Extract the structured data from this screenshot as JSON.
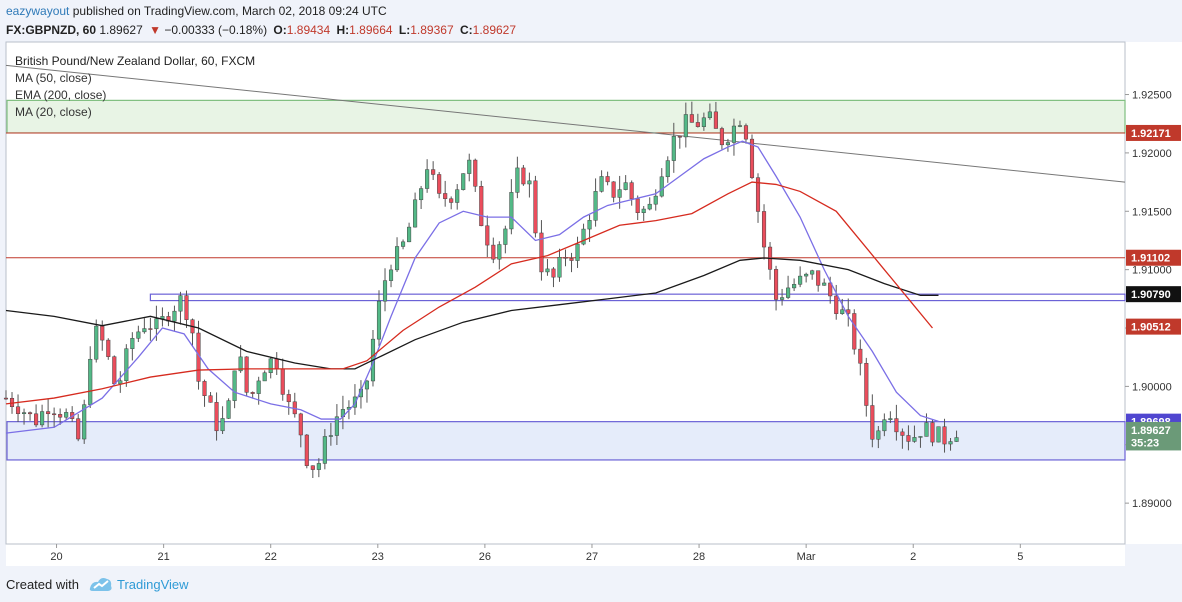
{
  "header": {
    "author": "eazywayout",
    "published_text": "published on TradingView.com, March 02, 2018 09:24 UTC",
    "symbol_tf": "FX:GBPNZD, 60",
    "last": "1.89627",
    "change_arrow": "▼",
    "change": "−0.00333 (−0.18%)",
    "open_label": "O:",
    "open": "1.89434",
    "high_label": "H:",
    "high": "1.89664",
    "low_label": "L:",
    "low": "1.89367",
    "close_label": "C:",
    "close": "1.89627"
  },
  "legend": {
    "title": "British Pound/New Zealand Dollar, 60, FXCM",
    "ma50": "MA (50, close)",
    "ema200": "EMA (200, close)",
    "ma20": "MA (20, close)"
  },
  "footer": {
    "created_with": "Created with",
    "brand": "TradingView"
  },
  "colors": {
    "up": "#53b987",
    "down": "#eb4d5c",
    "ma20": "#7b6fe6",
    "ma50": "#1a1a1a",
    "ema200": "#d62b1f",
    "green_zone": "#e3f3e3",
    "blue_zone": "#e3ebfa",
    "price_label": "#7a9e84",
    "resistance": "#b33"
  },
  "chart_data": {
    "type": "candlestick",
    "y_ticks": [
      "1.92500",
      "1.92000",
      "1.91500",
      "1.91000",
      "1.90500",
      "1.90000",
      "1.89500",
      "1.89000"
    ],
    "y_tick_values": [
      1.925,
      1.92,
      1.915,
      1.91,
      1.905,
      1.9,
      1.895,
      1.89
    ],
    "ylim": [
      1.8865,
      1.9295
    ],
    "x_ticks": [
      {
        "label": "20",
        "t": 42
      },
      {
        "label": "21",
        "t": 131
      },
      {
        "label": "22",
        "t": 220
      },
      {
        "label": "23",
        "t": 309
      },
      {
        "label": "26",
        "t": 398
      },
      {
        "label": "27",
        "t": 487
      },
      {
        "label": "28",
        "t": 576
      },
      {
        "label": "Mar",
        "t": 665
      },
      {
        "label": "2",
        "t": 754
      },
      {
        "label": "5",
        "t": 843
      }
    ],
    "last_bar_t": 790,
    "xlim": [
      0,
      930
    ],
    "ohlc_keypoints": [
      [
        0,
        1.899
      ],
      [
        12,
        1.8982
      ],
      [
        24,
        1.897
      ],
      [
        36,
        1.8985
      ],
      [
        50,
        1.8975
      ],
      [
        62,
        1.895
      ],
      [
        72,
        1.905
      ],
      [
        82,
        1.9035
      ],
      [
        92,
        1.8995
      ],
      [
        104,
        1.904
      ],
      [
        116,
        1.9055
      ],
      [
        126,
        1.905
      ],
      [
        136,
        1.9065
      ],
      [
        146,
        1.9075
      ],
      [
        154,
        1.9055
      ],
      [
        160,
        1.9005
      ],
      [
        168,
        1.8985
      ],
      [
        176,
        1.8965
      ],
      [
        184,
        1.8975
      ],
      [
        192,
        1.9035
      ],
      [
        202,
        1.8985
      ],
      [
        212,
        1.9015
      ],
      [
        224,
        1.9025
      ],
      [
        234,
        1.8985
      ],
      [
        244,
        1.8965
      ],
      [
        252,
        1.893
      ],
      [
        260,
        1.8935
      ],
      [
        268,
        1.896
      ],
      [
        278,
        1.898
      ],
      [
        288,
        1.8985
      ],
      [
        298,
        1.8992
      ],
      [
        308,
        1.906
      ],
      [
        318,
        1.9105
      ],
      [
        328,
        1.9115
      ],
      [
        338,
        1.9145
      ],
      [
        350,
        1.919
      ],
      [
        360,
        1.916
      ],
      [
        372,
        1.9165
      ],
      [
        384,
        1.9195
      ],
      [
        394,
        1.9145
      ],
      [
        404,
        1.9115
      ],
      [
        414,
        1.913
      ],
      [
        424,
        1.918
      ],
      [
        434,
        1.918
      ],
      [
        444,
        1.9105
      ],
      [
        454,
        1.909
      ],
      [
        464,
        1.9112
      ],
      [
        474,
        1.9115
      ],
      [
        484,
        1.9145
      ],
      [
        494,
        1.9175
      ],
      [
        504,
        1.9165
      ],
      [
        514,
        1.9175
      ],
      [
        524,
        1.9152
      ],
      [
        534,
        1.915
      ],
      [
        544,
        1.9185
      ],
      [
        554,
        1.921
      ],
      [
        564,
        1.9225
      ],
      [
        574,
        1.9225
      ],
      [
        584,
        1.923
      ],
      [
        594,
        1.921
      ],
      [
        602,
        1.9218
      ],
      [
        610,
        1.923
      ],
      [
        616,
        1.9215
      ],
      [
        622,
        1.917
      ],
      [
        630,
        1.912
      ],
      [
        640,
        1.9075
      ],
      [
        650,
        1.9085
      ],
      [
        660,
        1.909
      ],
      [
        670,
        1.9095
      ],
      [
        680,
        1.9085
      ],
      [
        690,
        1.907
      ],
      [
        700,
        1.9055
      ],
      [
        708,
        1.9025
      ],
      [
        714,
        1.899
      ],
      [
        722,
        1.895
      ],
      [
        732,
        1.8985
      ],
      [
        742,
        1.8965
      ],
      [
        752,
        1.8955
      ],
      [
        762,
        1.8965
      ],
      [
        770,
        1.896
      ],
      [
        780,
        1.8955
      ],
      [
        790,
        1.89627
      ]
    ],
    "ma20_points": [
      [
        0,
        1.896
      ],
      [
        40,
        1.8965
      ],
      [
        80,
        1.899
      ],
      [
        110,
        1.9025
      ],
      [
        130,
        1.905
      ],
      [
        148,
        1.9045
      ],
      [
        168,
        1.9015
      ],
      [
        190,
        1.8995
      ],
      [
        220,
        1.8985
      ],
      [
        245,
        1.898
      ],
      [
        262,
        1.8972
      ],
      [
        278,
        1.8972
      ],
      [
        290,
        1.8985
      ],
      [
        305,
        1.902
      ],
      [
        320,
        1.906
      ],
      [
        340,
        1.911
      ],
      [
        360,
        1.914
      ],
      [
        380,
        1.915
      ],
      [
        400,
        1.9145
      ],
      [
        420,
        1.9145
      ],
      [
        440,
        1.9125
      ],
      [
        460,
        1.913
      ],
      [
        480,
        1.9145
      ],
      [
        500,
        1.9155
      ],
      [
        520,
        1.916
      ],
      [
        540,
        1.9165
      ],
      [
        560,
        1.918
      ],
      [
        580,
        1.9195
      ],
      [
        600,
        1.9205
      ],
      [
        612,
        1.921
      ],
      [
        625,
        1.9205
      ],
      [
        640,
        1.918
      ],
      [
        660,
        1.9145
      ],
      [
        680,
        1.91
      ],
      [
        700,
        1.906
      ],
      [
        720,
        1.903
      ],
      [
        740,
        1.8995
      ],
      [
        760,
        1.8975
      ],
      [
        775,
        1.897
      ]
    ],
    "ma50_points": [
      [
        0,
        1.9065
      ],
      [
        40,
        1.906
      ],
      [
        80,
        1.9052
      ],
      [
        120,
        1.906
      ],
      [
        160,
        1.905
      ],
      [
        200,
        1.903
      ],
      [
        240,
        1.902
      ],
      [
        270,
        1.9015
      ],
      [
        290,
        1.9015
      ],
      [
        310,
        1.9025
      ],
      [
        340,
        1.904
      ],
      [
        380,
        1.9055
      ],
      [
        420,
        1.9065
      ],
      [
        460,
        1.907
      ],
      [
        500,
        1.9075
      ],
      [
        540,
        1.908
      ],
      [
        580,
        1.9095
      ],
      [
        610,
        1.9108
      ],
      [
        630,
        1.911
      ],
      [
        660,
        1.9108
      ],
      [
        700,
        1.91
      ],
      [
        730,
        1.9088
      ],
      [
        760,
        1.9078
      ],
      [
        775,
        1.9078
      ]
    ],
    "ema200_points": [
      [
        0,
        1.8985
      ],
      [
        40,
        1.899
      ],
      [
        80,
        1.8998
      ],
      [
        120,
        1.9008
      ],
      [
        160,
        1.9014
      ],
      [
        200,
        1.9015
      ],
      [
        240,
        1.9015
      ],
      [
        280,
        1.9015
      ],
      [
        300,
        1.9022
      ],
      [
        330,
        1.9048
      ],
      [
        360,
        1.9068
      ],
      [
        390,
        1.9085
      ],
      [
        420,
        1.9105
      ],
      [
        450,
        1.9112
      ],
      [
        480,
        1.9125
      ],
      [
        510,
        1.9138
      ],
      [
        540,
        1.9142
      ],
      [
        570,
        1.9148
      ],
      [
        600,
        1.9165
      ],
      [
        620,
        1.9175
      ],
      [
        640,
        1.9173
      ],
      [
        660,
        1.9167
      ],
      [
        690,
        1.915
      ],
      [
        710,
        1.9125
      ],
      [
        730,
        1.91
      ],
      [
        750,
        1.9075
      ],
      [
        770,
        1.905
      ]
    ],
    "trendline": {
      "from": [
        0,
        1.9275
      ],
      "to": [
        930,
        1.9175
      ]
    },
    "zones": [
      {
        "name": "upper-zone",
        "y0": 1.92171,
        "y1": 1.9245,
        "fill": "#e5f3e2",
        "stroke": "#7fbf7f"
      },
      {
        "name": "mid-zone",
        "y0": 1.90735,
        "y1": 1.9079,
        "fill": "#ffffff",
        "stroke": "#6b62d6",
        "t0": 120
      },
      {
        "name": "lower-zone",
        "y0": 1.8937,
        "y1": 1.89698,
        "fill": "#e2eafa",
        "stroke": "#6b62d6"
      }
    ],
    "hlines": [
      {
        "value": 1.92171,
        "color": "#c0392b"
      },
      {
        "value": 1.91102,
        "color": "#c0392b"
      }
    ],
    "price_labels": [
      {
        "text": "1.92171",
        "value": 1.92171,
        "bg": "#c0392b",
        "fg": "#ffffff"
      },
      {
        "text": "1.91102",
        "value": 1.91102,
        "bg": "#c0392b",
        "fg": "#ffffff"
      },
      {
        "text": "1.90790",
        "value": 1.9079,
        "bg": "#111111",
        "fg": "#ffffff"
      },
      {
        "text": "1.90512",
        "value": 1.90512,
        "bg": "#c0392b",
        "fg": "#ffffff"
      },
      {
        "text": "1.89698",
        "value": 1.89698,
        "bg": "#5046d0",
        "fg": "#ffffff"
      },
      {
        "text": "1.89627",
        "value": 1.89627,
        "bg": "#6b9a78",
        "fg": "#ffffff"
      },
      {
        "text": "35:23",
        "value": 1.8952,
        "bg": "#6b9a78",
        "fg": "#ffffff"
      }
    ]
  }
}
